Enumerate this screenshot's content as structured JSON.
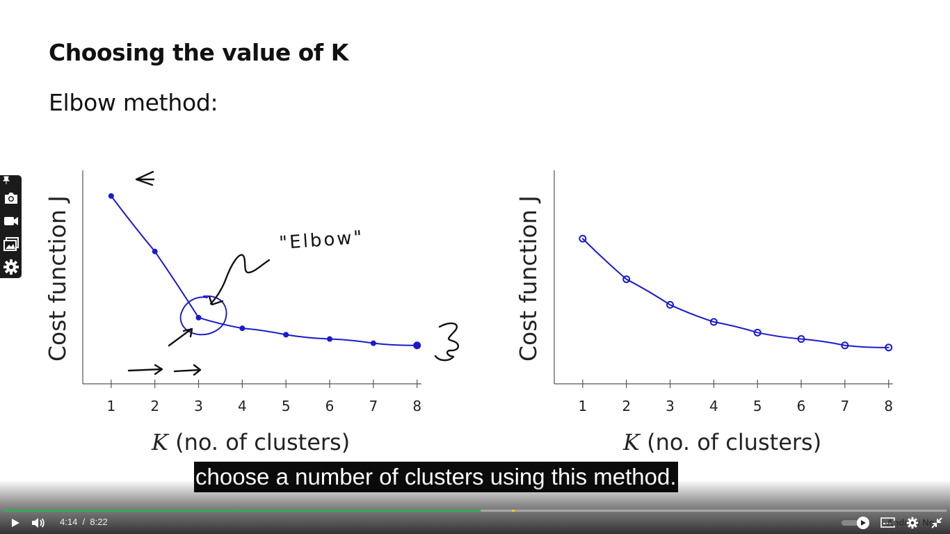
{
  "slide": {
    "title": "Choosing the value of K",
    "subtitle": "Elbow method:"
  },
  "chart_data": [
    {
      "type": "line",
      "title": "",
      "xlabel": "K (no. of clusters)",
      "ylabel": "Cost function J",
      "x": [
        1,
        2,
        3,
        4,
        5,
        6,
        7,
        8
      ],
      "xlim": [
        0.35,
        8.1
      ],
      "ylim": [
        0,
        1
      ],
      "series": [
        {
          "values": [
            0.88,
            0.62,
            0.31,
            0.26,
            0.23,
            0.21,
            0.19,
            0.18
          ]
        }
      ],
      "annotations": [
        "\"Elbow\"",
        "3"
      ],
      "grid": false
    },
    {
      "type": "line",
      "title": "",
      "xlabel": "K (no. of clusters)",
      "ylabel": "Cost function J",
      "x": [
        1,
        2,
        3,
        4,
        5,
        6,
        7,
        8
      ],
      "xlim": [
        0.35,
        8.1
      ],
      "ylim": [
        0,
        1
      ],
      "series": [
        {
          "values": [
            0.68,
            0.49,
            0.37,
            0.29,
            0.24,
            0.21,
            0.18,
            0.17
          ]
        }
      ],
      "grid": false
    }
  ],
  "caption": "choose a number of clusters using this method.",
  "player": {
    "current_time": "4:14",
    "duration": "8:22",
    "progress": 0.506,
    "marker": 0.539,
    "watermark": "Andrew Ng"
  },
  "icons": {
    "sidebar": [
      "pin-icon",
      "camera-icon",
      "video-icon",
      "gallery-icon",
      "gear-icon"
    ],
    "controls": [
      "play-icon",
      "volume-icon",
      "autoplay-toggle",
      "subtitles-icon",
      "settings-icon",
      "exit-fullscreen-icon"
    ]
  },
  "colors": {
    "ink": "#1a1acc",
    "progress": "#33aa55",
    "marker": "#f2d300"
  }
}
